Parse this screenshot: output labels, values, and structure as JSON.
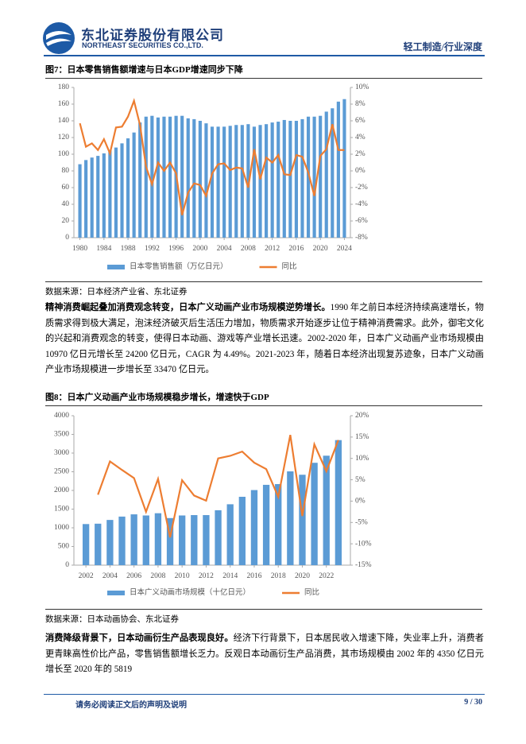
{
  "header": {
    "company": "东北证券股份有限公司",
    "company_en": "NORTHEAST SECURITIES CO.,LTD.",
    "section": "轻工制造/行业深度"
  },
  "chart_data": [
    {
      "type": "combo",
      "title": "图7：日本零售销售额增速与日本GDP增速同步下降",
      "source": "数据来源：日本经济产业省、东北证券",
      "x": [
        1980,
        1981,
        1982,
        1983,
        1984,
        1985,
        1986,
        1987,
        1988,
        1989,
        1990,
        1991,
        1992,
        1993,
        1994,
        1995,
        1996,
        1997,
        1998,
        1999,
        2000,
        2001,
        2002,
        2003,
        2004,
        2005,
        2006,
        2007,
        2008,
        2009,
        2010,
        2011,
        2012,
        2013,
        2014,
        2015,
        2016,
        2017,
        2018,
        2019,
        2020,
        2021,
        2022,
        2023,
        2024
      ],
      "xlim": [
        1979,
        2025
      ],
      "xticks": [
        1980,
        1984,
        1988,
        1992,
        1996,
        2000,
        2004,
        2008,
        2012,
        2016,
        2020,
        2024
      ],
      "ylim": [
        0,
        180
      ],
      "yticks": [
        0,
        20,
        40,
        60,
        80,
        100,
        120,
        140,
        160,
        180
      ],
      "y2lim": [
        -8,
        10
      ],
      "y2ticks": [
        {
          "value": -8,
          "label": "-8%"
        },
        {
          "value": -6,
          "label": "-6%"
        },
        {
          "value": -4,
          "label": "-4%"
        },
        {
          "value": -2,
          "label": "-2%"
        },
        {
          "value": 0,
          "label": "0%"
        },
        {
          "value": 2,
          "label": "2%"
        },
        {
          "value": 4,
          "label": "4%"
        },
        {
          "value": 6,
          "label": "6%"
        },
        {
          "value": 8,
          "label": "8%"
        },
        {
          "value": 10,
          "label": "10%"
        }
      ],
      "legend": "bottom",
      "series": [
        {
          "name": "日本零售销售额（万亿日元）",
          "type": "bar",
          "color": "#5b9bd5",
          "values": [
            88,
            93,
            96,
            98,
            101,
            105,
            108,
            113,
            119,
            126,
            138,
            145,
            146,
            144,
            145,
            145,
            146,
            146,
            143,
            142,
            140,
            137,
            133,
            133,
            133,
            134,
            135,
            135,
            136,
            133,
            135,
            136,
            138,
            139,
            141,
            140,
            140,
            142,
            145,
            145,
            146,
            151,
            155,
            163,
            166
          ]
        },
        {
          "name": "同比",
          "type": "line",
          "axis": "y2",
          "color": "#ed7d31",
          "values": [
            5.7,
            2.9,
            3.3,
            2.5,
            3.8,
            2.1,
            5.2,
            5.3,
            6.5,
            8.4,
            5.5,
            0.5,
            -1.6,
            1.0,
            0.0,
            1.0,
            -0.3,
            -5.3,
            -2.6,
            -1.5,
            -1.7,
            -3.0,
            -0.3,
            0.8,
            0.9,
            0.1,
            0.4,
            0.3,
            -2.0,
            2.6,
            -1.0,
            1.6,
            1.0,
            1.9,
            -0.4,
            -0.5,
            1.9,
            1.7,
            -0.2,
            -3.0,
            1.8,
            2.6,
            5.6,
            2.5,
            2.5
          ]
        }
      ]
    },
    {
      "type": "combo",
      "title": "图8：日本广义动画产业市场规模稳步增长，增速快于GDP",
      "source": "数据来源：日本动画协会、东北证券",
      "x": [
        2002,
        2003,
        2004,
        2005,
        2006,
        2007,
        2008,
        2009,
        2010,
        2011,
        2012,
        2013,
        2014,
        2015,
        2016,
        2017,
        2018,
        2019,
        2020,
        2021,
        2022,
        2023
      ],
      "xlim": [
        2001,
        2024
      ],
      "xticks": [
        2002,
        2004,
        2006,
        2008,
        2010,
        2012,
        2014,
        2016,
        2018,
        2020,
        2022
      ],
      "ylim": [
        0,
        4000
      ],
      "yticks": [
        0,
        500,
        1000,
        1500,
        2000,
        2500,
        3000,
        3500,
        4000
      ],
      "y2lim": [
        -15,
        20
      ],
      "y2ticks": [
        {
          "value": -15,
          "label": "-15%"
        },
        {
          "value": -10,
          "label": "-10%"
        },
        {
          "value": -5,
          "label": "-5%"
        },
        {
          "value": 0,
          "label": "0%"
        },
        {
          "value": 5,
          "label": "5%"
        },
        {
          "value": 10,
          "label": "10%"
        },
        {
          "value": 15,
          "label": "15%"
        },
        {
          "value": 20,
          "label": "20%"
        }
      ],
      "legend": "bottom",
      "series": [
        {
          "name": "日本广义动画市场规模（十亿日元）",
          "type": "bar",
          "color": "#5b9bd5",
          "values": [
            1100,
            1110,
            1210,
            1300,
            1360,
            1330,
            1390,
            1260,
            1330,
            1340,
            1340,
            1470,
            1630,
            1830,
            2010,
            2150,
            2170,
            2510,
            2420,
            2740,
            2930,
            3347
          ]
        },
        {
          "name": "同比",
          "type": "line",
          "axis": "y2",
          "color": "#ed7d31",
          "values": [
            null,
            1.5,
            9.3,
            7.3,
            5.4,
            -2.5,
            5.2,
            -8.5,
            4.9,
            1.3,
            0.1,
            10.0,
            10.6,
            11.6,
            9.0,
            7.5,
            1.0,
            15.5,
            -3.5,
            13.3,
            7.0,
            14.3
          ]
        }
      ]
    }
  ],
  "paragraphs": [
    {
      "lead": "精神消费崛起叠加消费观念转变，日本广义动画产业市场规模逆势增长。",
      "body": "1990 年之前日本经济持续高速增长，物质需求得到极大满足，泡沫经济破灭后生活压力增加，物质需求开始逐步让位于精神消费需求。此外，御宅文化的兴起和消费观念的转变，使得日本动画、游戏等产业增长迅速。2002-2020 年，日本广义动画产业市场规模由 10970 亿日元增长至 24200 亿日元，CAGR 为 4.49%。2021-2023 年，随着日本经济出现复苏迹象，日本广义动画产业市场规模进一步增长至 33470 亿日元。"
    },
    {
      "lead": "消费降级背景下，日本动画衍生产品表现良好。",
      "body": "经济下行背景下，日本居民收入增速下降，失业率上升，消费者更青睐高性价比产品，零售销售额增长乏力。反观日本动画衍生产品消费，其市场规模由 2002 年的 4350 亿日元增长至 2020 年的 5819"
    }
  ],
  "footer": {
    "notice": "请务必阅读正文后的声明及说明",
    "page": "9 / 30"
  }
}
